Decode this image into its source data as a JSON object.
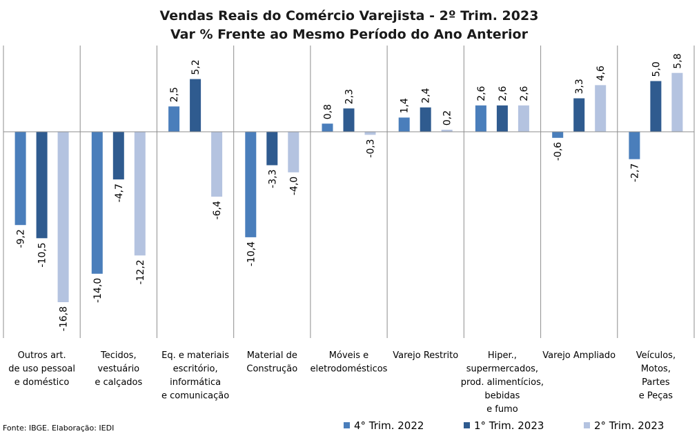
{
  "chart_data": {
    "type": "bar",
    "title": [
      "Vendas Reais do Comércio Varejista - 2º Trim. 2023",
      "Var % Frente ao Mesmo Período do Ano Anterior"
    ],
    "categories": [
      [
        "Outros art.",
        "de uso pessoal",
        "e doméstico"
      ],
      [
        "Tecidos,",
        "vestuário",
        "e calçados"
      ],
      [
        "Eq. e materiais",
        "escritório,",
        "informática",
        "e comunicação"
      ],
      [
        "Material de",
        "Construção"
      ],
      [
        "Móveis e",
        "eletrodomésticos"
      ],
      [
        "Varejo Restrito"
      ],
      [
        "Hiper.,",
        "supermercados,",
        "prod. alimentícios,",
        "bebidas",
        "e fumo"
      ],
      [
        "Varejo Ampliado"
      ],
      [
        "Veículos,",
        "Motos,",
        "Partes",
        "e Peças"
      ]
    ],
    "series": [
      {
        "name": "4° Trim. 2022",
        "color": "#4a7ebb",
        "values": [
          -9.2,
          -14.0,
          2.5,
          -10.4,
          0.8,
          1.4,
          2.6,
          -0.6,
          -2.7
        ]
      },
      {
        "name": "1° Trim. 2023",
        "color": "#2f5b8f",
        "values": [
          -10.5,
          -4.7,
          5.2,
          -3.3,
          2.3,
          2.4,
          2.6,
          3.3,
          5.0
        ]
      },
      {
        "name": "2° Trim. 2023",
        "color": "#b4c3e0",
        "values": [
          -16.8,
          -12.2,
          -6.4,
          -4.0,
          -0.3,
          0.2,
          2.6,
          4.6,
          5.8
        ]
      }
    ],
    "ylim": [
      -20,
      8
    ],
    "legend_position": "bottom-right",
    "grid": false,
    "decimal_separator": ","
  },
  "source_note": "Fonte: IBGE. Elaboração: IEDI"
}
